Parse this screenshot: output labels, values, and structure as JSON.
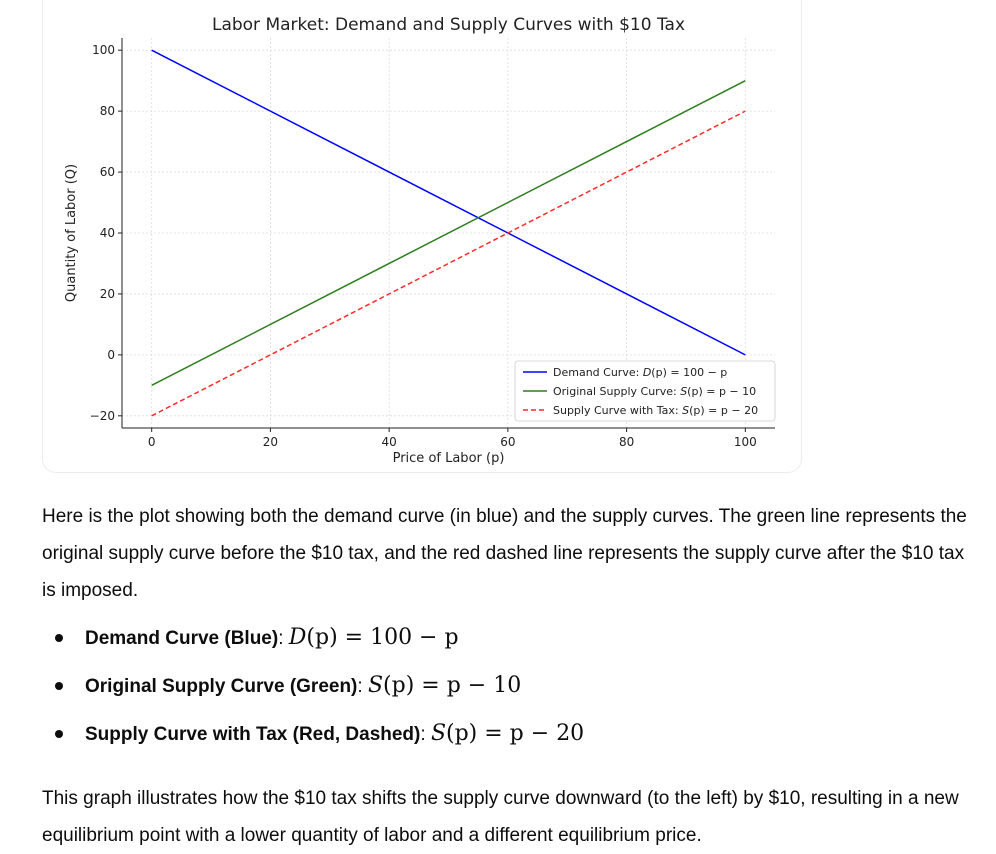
{
  "chart_data": {
    "type": "line",
    "title": "Labor Market: Demand and Supply Curves with $10 Tax",
    "xlabel": "Price of Labor (p)",
    "ylabel": "Quantity of Labor (Q)",
    "xlim": [
      -5,
      105
    ],
    "ylim": [
      -24,
      104
    ],
    "x_ticks": [
      0,
      20,
      40,
      60,
      80,
      100
    ],
    "y_ticks": [
      -20,
      0,
      20,
      40,
      60,
      80,
      100
    ],
    "x_tick_labels": [
      "0",
      "20",
      "40",
      "60",
      "80",
      "100"
    ],
    "y_tick_labels": [
      "−20",
      "0",
      "20",
      "40",
      "60",
      "80",
      "100"
    ],
    "grid": true,
    "legend_position": "lower-right",
    "series": [
      {
        "name": "Demand Curve: D(p) = 100 − p",
        "name_main": "Demand Curve: ",
        "name_func": "D",
        "name_arg": "(p) = 100 − p",
        "color": "#0000ff",
        "style": "solid",
        "x": [
          0,
          100
        ],
        "y": [
          100,
          0
        ]
      },
      {
        "name": "Original Supply Curve: S(p) = p − 10",
        "name_main": "Original Supply Curve: ",
        "name_func": "S",
        "name_arg": "(p) = p − 10",
        "color": "#2e7d1f",
        "style": "solid",
        "x": [
          0,
          100
        ],
        "y": [
          -10,
          90
        ]
      },
      {
        "name": "Supply Curve with Tax: S(p) = p − 20",
        "name_main": "Supply Curve with Tax: ",
        "name_func": "S",
        "name_arg": "(p) = p − 20",
        "color": "#ff2a2a",
        "style": "dashed",
        "x": [
          0,
          100
        ],
        "y": [
          -20,
          80
        ]
      }
    ]
  },
  "message": {
    "intro": "Here is the plot showing both the demand curve (in blue) and the supply curves. The green line represents the original supply curve before the $10 tax, and the red dashed line represents the supply curve after the $10 tax is imposed.",
    "items": [
      {
        "term": "Demand Curve (Blue)",
        "sep": ": ",
        "func": "D",
        "rest": "(p) = 100 − p"
      },
      {
        "term": "Original Supply Curve (Green)",
        "sep": ": ",
        "func": "S",
        "rest": "(p) = p − 10"
      },
      {
        "term": "Supply Curve with Tax (Red, Dashed)",
        "sep": ": ",
        "func": "S",
        "rest": "(p) = p − 20"
      }
    ],
    "conclusion": "This graph illustrates how the $10 tax shifts the supply curve downward (to the left) by $10, resulting in a new equilibrium point with a lower quantity of labor and a different equilibrium price."
  }
}
